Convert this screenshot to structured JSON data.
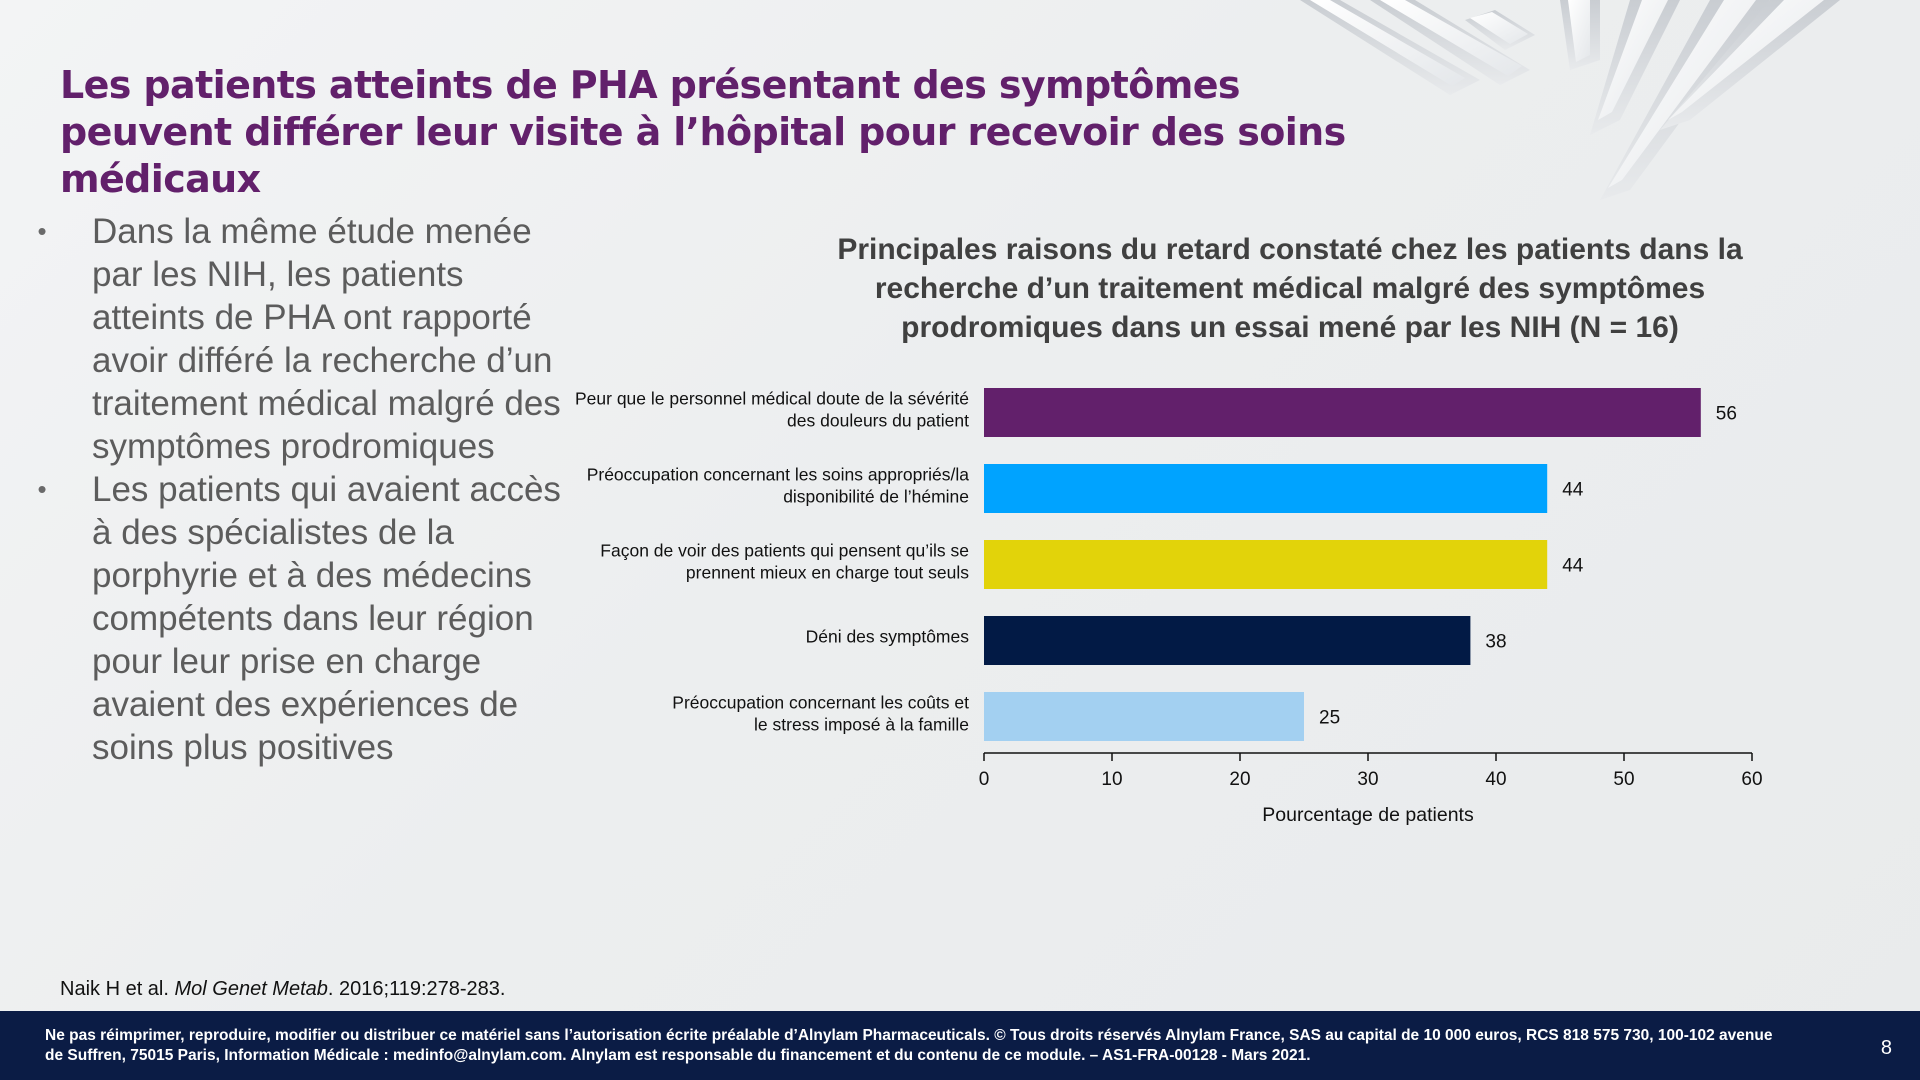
{
  "slide": {
    "title": "Les patients atteints de PHA présentant des symptômes peuvent différer leur visite à l’hôpital pour recevoir des soins médicaux",
    "bullets": [
      "Dans la même étude menée par les NIH, les patients atteints de PHA ont rapporté avoir différé la recherche d’un traitement médical malgré des symptômes prodromiques",
      "Les patients qui avaient accès à des spécialistes de la porphyrie et à des médecins compétents dans leur région pour leur prise en charge avaient des expériences de soins plus positives"
    ],
    "bullet_marker": "•",
    "reference": {
      "authors": "Naik H et al. ",
      "journal": "Mol Genet Metab",
      "details": ". 2016;119:278-283."
    },
    "footer": "Ne pas réimprimer, reproduire, modifier ou distribuer ce matériel sans l’autorisation écrite préalable d’Alnylam Pharmaceuticals. © Tous droits réservés Alnylam France, SAS au capital de 10 000 euros, RCS 818 575 730, 100-102 avenue de Suffren, 75015 Paris, Information Médicale : medinfo@alnylam.com. Alnylam est responsable du financement et du contenu de ce module. – AS1-FRA-00128 - Mars 2021.",
    "page_number": "8",
    "colors": {
      "title": "#62206b",
      "footer_bg": "#0b1c45"
    }
  },
  "chart_data": {
    "type": "bar",
    "orientation": "horizontal",
    "title": "Principales raisons du retard constaté chez les patients dans la recherche d’un traitement médical malgré des symptômes prodromiques dans un essai mené par les NIH (N = 16)",
    "categories": [
      [
        "Peur que le personnel médical doute de la sévérité",
        "des douleurs du patient"
      ],
      [
        "Préoccupation concernant les soins appropriés/la",
        "disponibilité de l’hémine"
      ],
      [
        "Façon de voir des patients qui pensent qu’ils se",
        "prennent mieux en charge tout seuls"
      ],
      [
        "Déni des symptômes"
      ],
      [
        "Préoccupation concernant les coûts et",
        "le stress imposé à la famille"
      ]
    ],
    "values": [
      56,
      44,
      44,
      38,
      25
    ],
    "colors": [
      "#62206b",
      "#00a3ff",
      "#e2d30a",
      "#021a45",
      "#a3d0f1"
    ],
    "xlabel": "Pourcentage de patients",
    "xlim": [
      0,
      60
    ],
    "xticks": [
      0,
      10,
      20,
      30,
      40,
      50,
      60
    ],
    "grid": false,
    "data_labels": true
  }
}
